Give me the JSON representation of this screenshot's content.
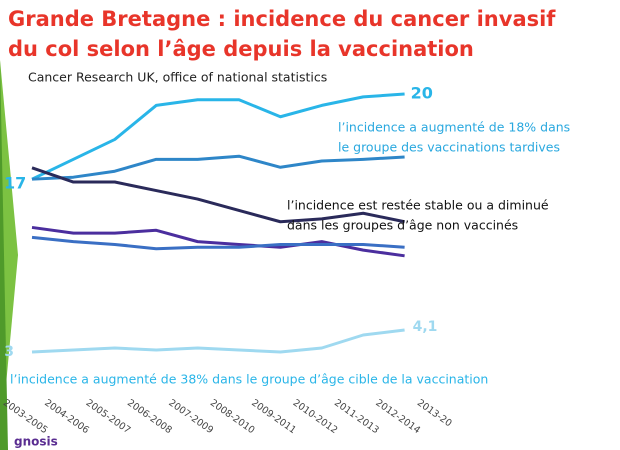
{
  "title": [
    "Grande Bretagne : incidence du cancer invasif",
    "du col selon l’âge depuis la vaccination"
  ],
  "subtitle": "Cancer Research UK, office of national statistics",
  "footer": "gnosis",
  "chart_data": [
    {
      "type": "line",
      "ylim": [
        13.8,
        21.2
      ],
      "series": [
        {
          "color": "#29b5e8",
          "values": [
            17,
            17.7,
            18.4,
            19.6,
            19.8,
            19.8,
            19.2,
            19.6,
            19.9,
            20,
            null
          ]
        },
        {
          "color": "#2e86c8",
          "values": [
            17,
            17.07,
            17.28,
            17.7,
            17.7,
            17.81,
            17.42,
            17.64,
            17.7,
            17.78,
            null
          ]
        },
        {
          "color": "#2a2a5a",
          "values": [
            17.4,
            16.9,
            16.9,
            16.6,
            16.3,
            15.9,
            15.5,
            15.6,
            15.8,
            15.5,
            null
          ]
        },
        {
          "color": "#4b2e9e",
          "values": [
            15.3,
            15.1,
            15.1,
            15.2,
            14.8,
            14.7,
            14.6,
            14.8,
            14.5,
            14.3,
            null
          ]
        },
        {
          "color": "#3a6fc4",
          "values": [
            14.95,
            14.8,
            14.7,
            14.55,
            14.6,
            14.6,
            14.7,
            14.7,
            14.7,
            14.6,
            null
          ]
        }
      ],
      "annotations": [
        {
          "color": "#29a8df",
          "lines": [
            "l’incidence a augmenté de 18% dans",
            "le groupe des vaccinations tardives"
          ]
        },
        {
          "color": "#111111",
          "lines": [
            "l’incidence est restée stable ou a diminué",
            "dans les groupes d’âge non vaccinés"
          ]
        }
      ]
    },
    {
      "type": "line",
      "ylim": [
        2.1,
        5.6
      ],
      "categories": [
        "2003-2005",
        "2004-2006",
        "2005-2007",
        "2006-2008",
        "2007-2009",
        "2008-2010",
        "2009-2011",
        "2010-2012",
        "2011-2013",
        "2012-2014",
        "2013-20"
      ],
      "series": [
        {
          "color": "#9fd9f0",
          "values": [
            3,
            3.1,
            3.2,
            3.1,
            3.2,
            3.1,
            3,
            3.2,
            3.85,
            4.1,
            null
          ],
          "value_labels": [
            null,
            null,
            null,
            null,
            null,
            null,
            null,
            null,
            null,
            "4,1",
            null
          ]
        }
      ],
      "annotations": [
        {
          "color": "#29b5e8",
          "lines": [
            "l’incidence a augmenté de 38% dans le groupe d’âge cible de la vaccination"
          ]
        }
      ]
    }
  ]
}
